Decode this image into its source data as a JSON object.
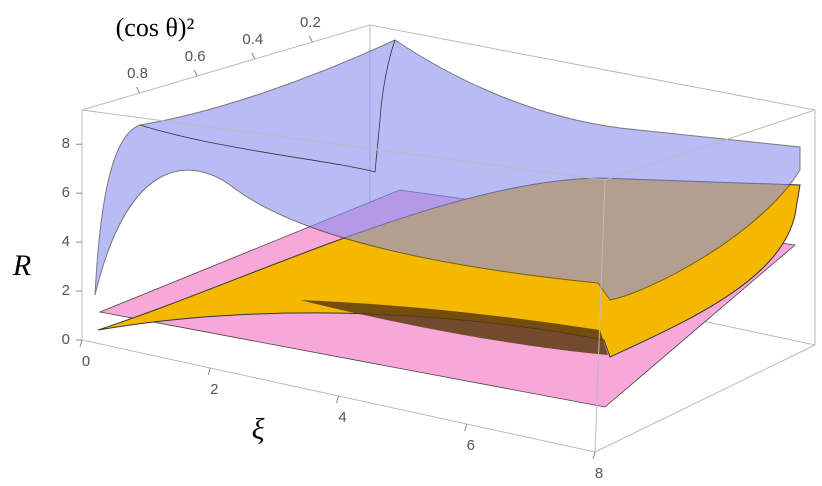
{
  "chart_data": {
    "type": "surface3d",
    "xlabel": "ξ",
    "ylabel": "(cos θ)²",
    "zlabel": "R",
    "xlim": [
      0,
      8
    ],
    "xticks": [
      0,
      2,
      4,
      6,
      8
    ],
    "ylim": [
      0,
      1
    ],
    "yticks": [
      0.2,
      0.4,
      0.6,
      0.8
    ],
    "zlim": [
      0,
      9.4
    ],
    "zticks": [
      0,
      2,
      4,
      6,
      8
    ],
    "series": [
      {
        "color": "#f7a8d8"
      },
      {
        "color": "#f5b800"
      },
      {
        "color": "#8a8ef0"
      }
    ]
  }
}
